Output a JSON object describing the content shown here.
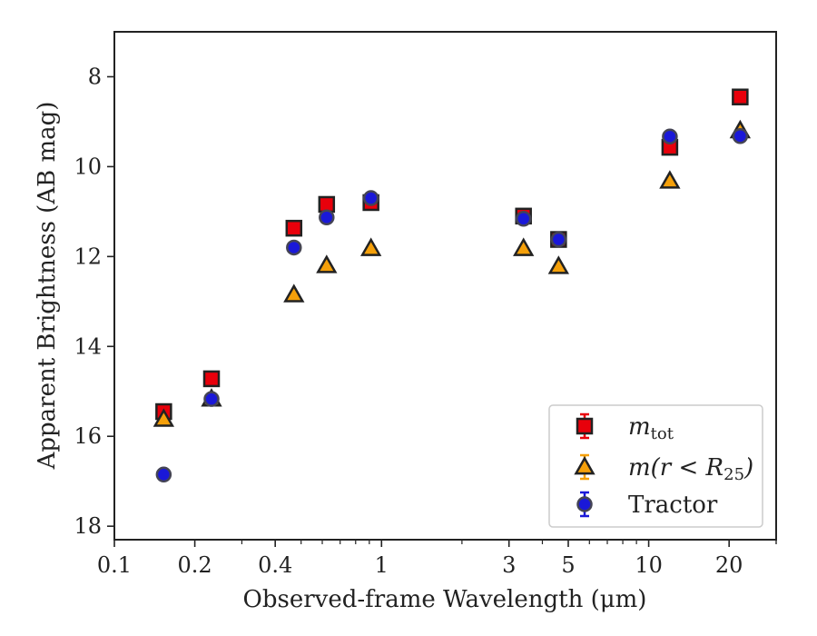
{
  "chart_data": {
    "type": "scatter",
    "xlabel": "Observed-frame Wavelength (μm)",
    "ylabel": "Apparent Brightness (AB mag)",
    "x_scale": "log",
    "xlim": [
      0.1,
      30
    ],
    "ylim": [
      18.3,
      7.0
    ],
    "y_inverted": true,
    "x_ticks": [
      {
        "value": 0.1,
        "label": "0.1"
      },
      {
        "value": 0.2,
        "label": "0.2"
      },
      {
        "value": 0.4,
        "label": "0.4"
      },
      {
        "value": 1,
        "label": "1"
      },
      {
        "value": 3,
        "label": "3"
      },
      {
        "value": 5,
        "label": "5"
      },
      {
        "value": 10,
        "label": "10"
      },
      {
        "value": 20,
        "label": "20"
      }
    ],
    "y_ticks": [
      {
        "value": 8,
        "label": "8"
      },
      {
        "value": 10,
        "label": "10"
      },
      {
        "value": 12,
        "label": "12"
      },
      {
        "value": 14,
        "label": "14"
      },
      {
        "value": 16,
        "label": "16"
      },
      {
        "value": 18,
        "label": "18"
      }
    ],
    "grid": false,
    "legend_position": "lower-right",
    "series": [
      {
        "name": "m_tot",
        "legend_label": "m",
        "legend_sub": "tot",
        "marker": "square",
        "color": "#e8000b",
        "edge_color": "#222222",
        "points": [
          {
            "x": 0.153,
            "y": 15.45
          },
          {
            "x": 0.231,
            "y": 14.72
          },
          {
            "x": 0.47,
            "y": 11.37
          },
          {
            "x": 0.623,
            "y": 10.84
          },
          {
            "x": 0.913,
            "y": 10.8
          },
          {
            "x": 3.4,
            "y": 11.1
          },
          {
            "x": 4.6,
            "y": 11.62
          },
          {
            "x": 12.0,
            "y": 9.57
          },
          {
            "x": 22.0,
            "y": 8.45
          }
        ]
      },
      {
        "name": "m(r < R_25)",
        "legend_label": "m(r < R",
        "legend_sub": "25",
        "legend_tail": ")",
        "marker": "triangle",
        "color": "#f5a00a",
        "edge_color": "#222222",
        "points": [
          {
            "x": 0.153,
            "y": 15.62
          },
          {
            "x": 0.231,
            "y": 15.17
          },
          {
            "x": 0.47,
            "y": 12.85
          },
          {
            "x": 0.623,
            "y": 12.2
          },
          {
            "x": 0.913,
            "y": 11.82
          },
          {
            "x": 3.4,
            "y": 11.82
          },
          {
            "x": 4.6,
            "y": 12.22
          },
          {
            "x": 12.0,
            "y": 10.32
          },
          {
            "x": 22.0,
            "y": 9.2
          }
        ]
      },
      {
        "name": "Tractor",
        "legend_label": "Tractor",
        "marker": "circle",
        "color": "#1a18d8",
        "edge_color": "#444455",
        "points": [
          {
            "x": 0.153,
            "y": 16.85
          },
          {
            "x": 0.231,
            "y": 15.17
          },
          {
            "x": 0.47,
            "y": 11.8
          },
          {
            "x": 0.623,
            "y": 11.13
          },
          {
            "x": 0.913,
            "y": 10.7
          },
          {
            "x": 3.4,
            "y": 11.16
          },
          {
            "x": 4.6,
            "y": 11.62
          },
          {
            "x": 12.0,
            "y": 9.33
          },
          {
            "x": 22.0,
            "y": 9.32
          }
        ]
      }
    ]
  }
}
